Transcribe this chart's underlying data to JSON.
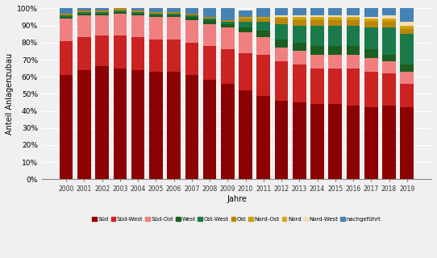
{
  "years": [
    2000,
    2001,
    2002,
    2003,
    2004,
    2005,
    2006,
    2007,
    2008,
    2009,
    2010,
    2011,
    2012,
    2013,
    2014,
    2015,
    2016,
    2017,
    2018,
    2019
  ],
  "categories": [
    "Süd",
    "Süd-West",
    "Süd-Ost",
    "West",
    "Ost-West",
    "Ost",
    "Nord-Ost",
    "Nord",
    "Nord-West",
    "nachgeführt"
  ],
  "colors": [
    "#8b0000",
    "#cc2222",
    "#f08080",
    "#1b5e20",
    "#1a7a4a",
    "#b8860b",
    "#c8a000",
    "#daa520",
    "#f5deb3",
    "#4682b4"
  ],
  "data": {
    "Süd": [
      61,
      64,
      66,
      65,
      64,
      63,
      63,
      61,
      58,
      56,
      52,
      49,
      46,
      45,
      44,
      44,
      43,
      42,
      43,
      42
    ],
    "Süd-West": [
      20,
      19,
      18,
      19,
      19,
      19,
      19,
      19,
      20,
      20,
      22,
      24,
      23,
      22,
      21,
      21,
      22,
      21,
      19,
      14
    ],
    "Süd-Ost": [
      13,
      13,
      12,
      13,
      13,
      13,
      13,
      13,
      13,
      13,
      12,
      10,
      8,
      8,
      8,
      8,
      8,
      8,
      7,
      7
    ],
    "West": [
      1,
      1,
      1,
      1,
      1,
      1,
      1,
      2,
      2,
      2,
      3,
      4,
      5,
      5,
      5,
      5,
      5,
      5,
      4,
      4
    ],
    "Ost-West": [
      1,
      1,
      1,
      1,
      1,
      1,
      1,
      1,
      1,
      1,
      3,
      5,
      9,
      10,
      12,
      12,
      12,
      13,
      16,
      18
    ],
    "Ost": [
      1,
      1,
      1,
      1,
      1,
      1,
      1,
      1,
      1,
      1,
      2,
      2,
      3,
      3,
      3,
      3,
      3,
      3,
      3,
      3
    ],
    "Nord-Ost": [
      0,
      0,
      0,
      0,
      0,
      0,
      0,
      0,
      0,
      0,
      1,
      1,
      1,
      1,
      1,
      1,
      1,
      1,
      1,
      1
    ],
    "Nord": [
      0,
      0,
      0,
      0,
      0,
      0,
      0,
      0,
      0,
      0,
      0,
      0,
      0,
      1,
      1,
      1,
      1,
      1,
      1,
      1
    ],
    "Nord-West": [
      0,
      0,
      0,
      0,
      0,
      0,
      0,
      0,
      0,
      0,
      0,
      0,
      1,
      1,
      1,
      1,
      1,
      1,
      2,
      2
    ],
    "nachgeführt": [
      3,
      1,
      1,
      0,
      1,
      2,
      2,
      3,
      5,
      7,
      4,
      5,
      4,
      4,
      4,
      4,
      4,
      5,
      4,
      8
    ]
  },
  "ylabel": "Anteil Anlagenzubau",
  "xlabel": "Jahre",
  "ylim": [
    0,
    100
  ],
  "background_color": "#f0f0f0"
}
